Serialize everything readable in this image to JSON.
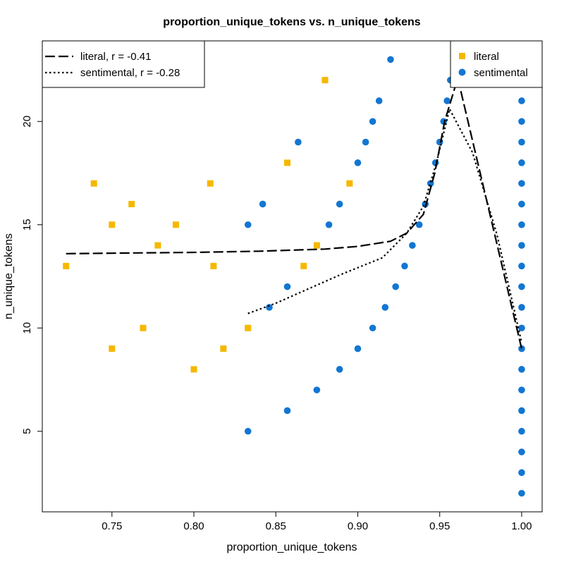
{
  "chart_data": {
    "type": "scatter",
    "title": "proportion_unique_tokens vs. n_unique_tokens",
    "xlabel": "proportion_unique_tokens",
    "ylabel": "n_unique_tokens",
    "xlim": [
      0.7075,
      1.0125
    ],
    "ylim": [
      1.1,
      23.9
    ],
    "xticks": [
      0.75,
      0.8,
      0.85,
      0.9,
      0.95,
      1.0
    ],
    "xtick_labels": [
      "0.75",
      "0.80",
      "0.85",
      "0.90",
      "0.95",
      "1.00"
    ],
    "yticks": [
      5,
      10,
      15,
      20
    ],
    "ytick_labels": [
      "5",
      "10",
      "15",
      "20"
    ],
    "legend_points": {
      "position": "top-right",
      "entries": [
        {
          "label": "literal",
          "color": "#F5B800",
          "shape": "square"
        },
        {
          "label": "sentimental",
          "color": "#1276D2",
          "shape": "circle"
        }
      ]
    },
    "legend_lines": {
      "position": "top-left",
      "entries": [
        {
          "label": "literal, r = -0.41",
          "style": "long-dash"
        },
        {
          "label": "sentimental, r = -0.28",
          "style": "dotted"
        }
      ]
    },
    "series": [
      {
        "name": "literal",
        "color": "#F5B800",
        "shape": "square",
        "points": [
          [
            0.722,
            13
          ],
          [
            0.739,
            17
          ],
          [
            0.75,
            15
          ],
          [
            0.75,
            9
          ],
          [
            0.762,
            16
          ],
          [
            0.769,
            10
          ],
          [
            0.778,
            14
          ],
          [
            0.789,
            15
          ],
          [
            0.8,
            8
          ],
          [
            0.81,
            17
          ],
          [
            0.812,
            13
          ],
          [
            0.818,
            9
          ],
          [
            0.833,
            10
          ],
          [
            0.857,
            18
          ],
          [
            0.867,
            13
          ],
          [
            0.875,
            14
          ],
          [
            0.88,
            22
          ],
          [
            0.895,
            17
          ]
        ]
      },
      {
        "name": "sentimental",
        "color": "#1276D2",
        "shape": "circle",
        "points": [
          [
            0.833,
            5
          ],
          [
            0.833,
            15
          ],
          [
            0.842,
            16
          ],
          [
            0.846,
            11
          ],
          [
            0.857,
            6
          ],
          [
            0.857,
            12
          ],
          [
            0.8636,
            19
          ],
          [
            0.875,
            7
          ],
          [
            0.8824,
            15
          ],
          [
            0.8889,
            8
          ],
          [
            0.8889,
            16
          ],
          [
            0.9,
            9
          ],
          [
            0.9,
            18
          ],
          [
            0.9048,
            19
          ],
          [
            0.9091,
            10
          ],
          [
            0.9091,
            20
          ],
          [
            0.913,
            21
          ],
          [
            0.9167,
            11
          ],
          [
            0.92,
            23
          ],
          [
            0.9231,
            12
          ],
          [
            0.9286,
            13
          ],
          [
            0.9333,
            14
          ],
          [
            0.9375,
            15
          ],
          [
            0.9412,
            16
          ],
          [
            0.9444,
            17
          ],
          [
            0.9474,
            18
          ],
          [
            0.95,
            19
          ],
          [
            0.9524,
            20
          ],
          [
            0.9545,
            21
          ],
          [
            0.9565,
            22
          ],
          [
            1.0,
            2
          ],
          [
            1.0,
            3
          ],
          [
            1.0,
            4
          ],
          [
            1.0,
            5
          ],
          [
            1.0,
            6
          ],
          [
            1.0,
            7
          ],
          [
            1.0,
            8
          ],
          [
            1.0,
            9
          ],
          [
            1.0,
            10
          ],
          [
            1.0,
            11
          ],
          [
            1.0,
            12
          ],
          [
            1.0,
            13
          ],
          [
            1.0,
            14
          ],
          [
            1.0,
            15
          ],
          [
            1.0,
            16
          ],
          [
            1.0,
            17
          ],
          [
            1.0,
            18
          ],
          [
            1.0,
            19
          ],
          [
            1.0,
            20
          ],
          [
            1.0,
            21
          ],
          [
            1.0,
            22
          ]
        ]
      }
    ],
    "fit_lines": [
      {
        "name": "literal, r = -0.41",
        "style": "long-dash",
        "points": [
          [
            0.722,
            13.6
          ],
          [
            0.76,
            13.63
          ],
          [
            0.8,
            13.66
          ],
          [
            0.84,
            13.72
          ],
          [
            0.88,
            13.82
          ],
          [
            0.9,
            13.95
          ],
          [
            0.92,
            14.2
          ],
          [
            0.93,
            14.6
          ],
          [
            0.94,
            15.5
          ],
          [
            0.947,
            17.5
          ],
          [
            0.953,
            20.0
          ],
          [
            0.961,
            22.1
          ],
          [
            1.0,
            9.0
          ]
        ]
      },
      {
        "name": "sentimental, r = -0.28",
        "style": "dotted",
        "points": [
          [
            0.833,
            10.7
          ],
          [
            0.85,
            11.2
          ],
          [
            0.87,
            11.9
          ],
          [
            0.89,
            12.6
          ],
          [
            0.915,
            13.4
          ],
          [
            0.93,
            14.6
          ],
          [
            0.94,
            15.9
          ],
          [
            0.948,
            18.0
          ],
          [
            0.956,
            20.6
          ],
          [
            0.97,
            18.5
          ],
          [
            0.985,
            14.5
          ],
          [
            1.0,
            9.3
          ]
        ]
      }
    ]
  }
}
